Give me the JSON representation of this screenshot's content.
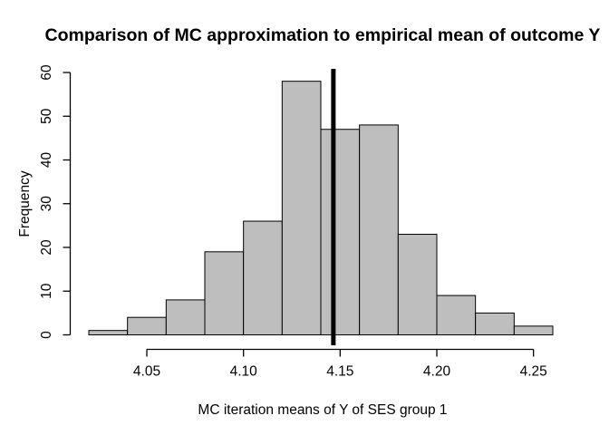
{
  "window": {
    "background_color": "#FFFFFF"
  },
  "chart_data": {
    "type": "bar",
    "subtype": "histogram",
    "title": "Comparison of MC approximation to empirical mean of outcome Y",
    "xlabel": "MC iteration means of Y of SES group 1",
    "ylabel": "Frequency",
    "bin_breaks": [
      4.02,
      4.04,
      4.06,
      4.08,
      4.1,
      4.12,
      4.14,
      4.16,
      4.18,
      4.2,
      4.22,
      4.24,
      4.26
    ],
    "counts": [
      1,
      4,
      8,
      19,
      26,
      58,
      47,
      48,
      23,
      9,
      5,
      2
    ],
    "total_observations": 250,
    "x_ticks": [
      {
        "value": 4.05,
        "label": "4.05"
      },
      {
        "value": 4.1,
        "label": "4.10"
      },
      {
        "value": 4.15,
        "label": "4.15"
      },
      {
        "value": 4.2,
        "label": "4.20"
      },
      {
        "value": 4.25,
        "label": "4.25"
      }
    ],
    "y_ticks": [
      {
        "value": 0,
        "label": "0"
      },
      {
        "value": 10,
        "label": "10"
      },
      {
        "value": 20,
        "label": "20"
      },
      {
        "value": 30,
        "label": "30"
      },
      {
        "value": 40,
        "label": "40"
      },
      {
        "value": 50,
        "label": "50"
      },
      {
        "value": 60,
        "label": "60"
      }
    ],
    "xlim": [
      4.02,
      4.26
    ],
    "ylim": [
      0,
      60
    ],
    "reference_line": {
      "x": 4.1465,
      "color": "#000000",
      "stroke_width": 5
    },
    "grid": false,
    "legend": false,
    "colors": {
      "bar_fill": "#BEBEBE",
      "bar_border": "#000000",
      "axis": "#000000",
      "text": "#000000"
    }
  }
}
